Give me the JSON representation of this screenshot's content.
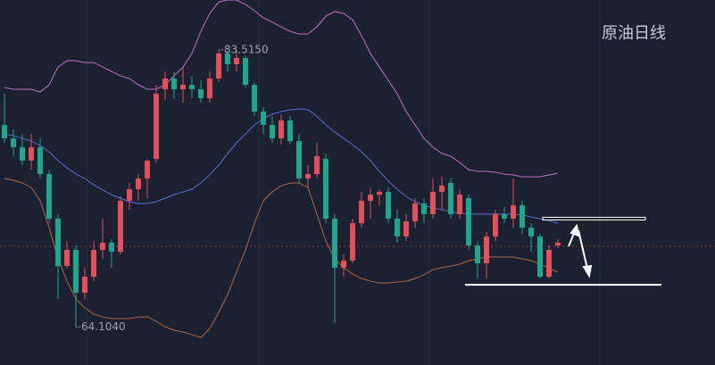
{
  "chart_data": {
    "type": "candlestick",
    "title": "原油日线",
    "ylim": [
      61.44,
      87
    ],
    "up_color": "#e2505c",
    "down_color": "#1fa68c",
    "candles": [
      [
        78.25,
        80.44,
        77.0,
        77.31
      ],
      [
        77.31,
        77.94,
        76.06,
        76.69
      ],
      [
        76.69,
        77.62,
        75.44,
        75.75
      ],
      [
        75.75,
        77.62,
        75.12,
        76.69
      ],
      [
        76.69,
        77.31,
        74.5,
        74.81
      ],
      [
        74.81,
        75.12,
        71.37,
        71.69
      ],
      [
        71.69,
        72.0,
        66.06,
        68.37
      ],
      [
        68.37,
        70.12,
        68.25,
        69.5
      ],
      [
        69.5,
        69.81,
        64.104,
        66.5
      ],
      [
        66.5,
        68.25,
        66.06,
        67.62
      ],
      [
        67.62,
        70.12,
        67.31,
        69.5
      ],
      [
        69.5,
        71.69,
        68.87,
        70.0
      ],
      [
        70.0,
        70.25,
        68.25,
        69.37
      ],
      [
        69.37,
        73.25,
        69.19,
        72.94
      ],
      [
        72.94,
        74.19,
        72.31,
        73.75
      ],
      [
        73.75,
        74.81,
        72.94,
        74.5
      ],
      [
        74.5,
        75.87,
        73.12,
        75.75
      ],
      [
        75.87,
        81.06,
        75.62,
        80.44
      ],
      [
        80.75,
        82.0,
        80.0,
        81.5
      ],
      [
        81.5,
        82.0,
        80.12,
        80.75
      ],
      [
        80.75,
        82.31,
        79.81,
        81.06
      ],
      [
        81.06,
        81.69,
        80.12,
        80.75
      ],
      [
        80.75,
        81.37,
        79.81,
        80.12
      ],
      [
        80.12,
        82.0,
        79.81,
        81.5
      ],
      [
        81.5,
        83.515,
        81.25,
        83.25
      ],
      [
        83.25,
        83.44,
        82.0,
        82.5
      ],
      [
        82.5,
        83.44,
        82.0,
        82.94
      ],
      [
        82.94,
        83.12,
        80.87,
        81.06
      ],
      [
        81.06,
        81.25,
        78.87,
        79.19
      ],
      [
        79.19,
        79.5,
        77.62,
        78.25
      ],
      [
        78.25,
        78.87,
        77.0,
        77.31
      ],
      [
        77.31,
        79.0,
        76.87,
        78.56
      ],
      [
        78.56,
        78.87,
        76.87,
        77.12
      ],
      [
        77.12,
        77.62,
        74.19,
        74.5
      ],
      [
        74.5,
        75.44,
        73.87,
        74.81
      ],
      [
        74.81,
        77.0,
        74.5,
        76.06
      ],
      [
        75.87,
        76.25,
        71.37,
        71.69
      ],
      [
        71.69,
        72.0,
        64.37,
        68.25
      ],
      [
        68.25,
        69.19,
        67.62,
        68.75
      ],
      [
        68.75,
        71.69,
        68.56,
        71.37
      ],
      [
        71.37,
        73.56,
        71.06,
        72.94
      ],
      [
        72.94,
        73.87,
        71.69,
        73.37
      ],
      [
        73.37,
        73.75,
        72.62,
        73.56
      ],
      [
        73.56,
        73.87,
        71.37,
        71.69
      ],
      [
        71.69,
        72.31,
        70.0,
        70.44
      ],
      [
        70.44,
        72.0,
        70.12,
        71.5
      ],
      [
        71.5,
        73.12,
        71.06,
        72.75
      ],
      [
        72.75,
        73.12,
        71.37,
        72.0
      ],
      [
        72.0,
        74.5,
        71.69,
        73.56
      ],
      [
        73.56,
        74.62,
        72.31,
        74.0
      ],
      [
        74.19,
        74.5,
        71.69,
        72.0
      ],
      [
        72.0,
        73.75,
        71.69,
        73.37
      ],
      [
        73.12,
        73.37,
        69.5,
        69.81
      ],
      [
        69.81,
        70.12,
        67.5,
        68.56
      ],
      [
        68.56,
        70.75,
        67.5,
        70.44
      ],
      [
        70.44,
        72.31,
        70.12,
        72.0
      ],
      [
        72.0,
        72.5,
        71.37,
        71.69
      ],
      [
        71.69,
        74.5,
        71.06,
        72.62
      ],
      [
        72.62,
        72.94,
        70.62,
        71.06
      ],
      [
        71.06,
        71.37,
        69.37,
        70.44
      ],
      [
        70.44,
        70.62,
        67.5,
        67.62
      ],
      [
        67.62,
        69.81,
        67.5,
        69.5
      ],
      [
        69.81,
        70.25,
        69.62,
        70.0
      ]
    ],
    "max_label": "83.5150",
    "max_candle": 24,
    "min_label": "64.1040",
    "min_candle": 8,
    "lines": [
      {
        "color": "#c46fc6",
        "values": [
          80.87,
          80.75,
          80.75,
          80.75,
          80.56,
          81.06,
          82.31,
          82.75,
          82.75,
          82.62,
          82.62,
          82.31,
          82.0,
          81.69,
          81.5,
          81.06,
          80.75,
          80.75,
          81.06,
          81.69,
          82.31,
          83.25,
          84.81,
          86.06,
          86.87,
          87.0,
          87.0,
          86.69,
          86.25,
          85.75,
          85.44,
          85.12,
          84.81,
          84.62,
          84.62,
          85.12,
          85.87,
          86.19,
          86.06,
          85.62,
          84.5,
          83.25,
          82.31,
          81.37,
          80.44,
          79.19,
          78.25,
          77.31,
          76.69,
          76.25,
          76.06,
          75.62,
          75.12,
          75.0,
          75.0,
          74.94,
          74.81,
          74.75,
          74.62,
          74.62,
          74.62,
          74.75,
          74.87
        ]
      },
      {
        "color": "#5b6fd6",
        "values": [
          77.62,
          77.5,
          77.31,
          77.12,
          76.81,
          76.37,
          75.75,
          75.25,
          74.81,
          74.5,
          74.06,
          73.69,
          73.37,
          73.12,
          72.87,
          72.75,
          72.75,
          72.87,
          73.12,
          73.37,
          73.56,
          73.75,
          74.19,
          74.75,
          75.44,
          76.25,
          77.0,
          77.62,
          78.25,
          78.69,
          79.0,
          79.19,
          79.31,
          79.37,
          79.31,
          78.87,
          78.25,
          77.75,
          77.31,
          76.87,
          76.37,
          75.75,
          75.0,
          74.31,
          73.75,
          73.25,
          72.87,
          72.62,
          72.44,
          72.31,
          72.19,
          72.06,
          72.0,
          72.0,
          72.0,
          72.0,
          72.0,
          72.0,
          71.94,
          71.81,
          71.69,
          71.56,
          71.37
        ]
      },
      {
        "color": "#b0673e",
        "values": [
          74.5,
          74.37,
          74.19,
          73.87,
          72.94,
          71.06,
          68.87,
          67.31,
          66.06,
          65.44,
          65.0,
          64.81,
          64.69,
          64.69,
          64.69,
          64.81,
          64.81,
          64.5,
          64.12,
          63.87,
          63.75,
          63.56,
          63.37,
          64.0,
          65.12,
          66.37,
          67.94,
          69.5,
          71.37,
          72.94,
          73.56,
          74.0,
          74.19,
          74.19,
          73.87,
          72.0,
          70.12,
          68.87,
          68.25,
          67.81,
          67.5,
          67.31,
          67.19,
          67.19,
          67.25,
          67.31,
          67.5,
          67.75,
          68.12,
          68.25,
          68.37,
          68.5,
          68.75,
          68.87,
          69.0,
          69.0,
          69.0,
          69.0,
          68.87,
          68.75,
          68.5,
          68.25,
          67.94
        ]
      }
    ],
    "price_line": 69.75,
    "support_lines": [
      71.69,
      67.06
    ]
  }
}
